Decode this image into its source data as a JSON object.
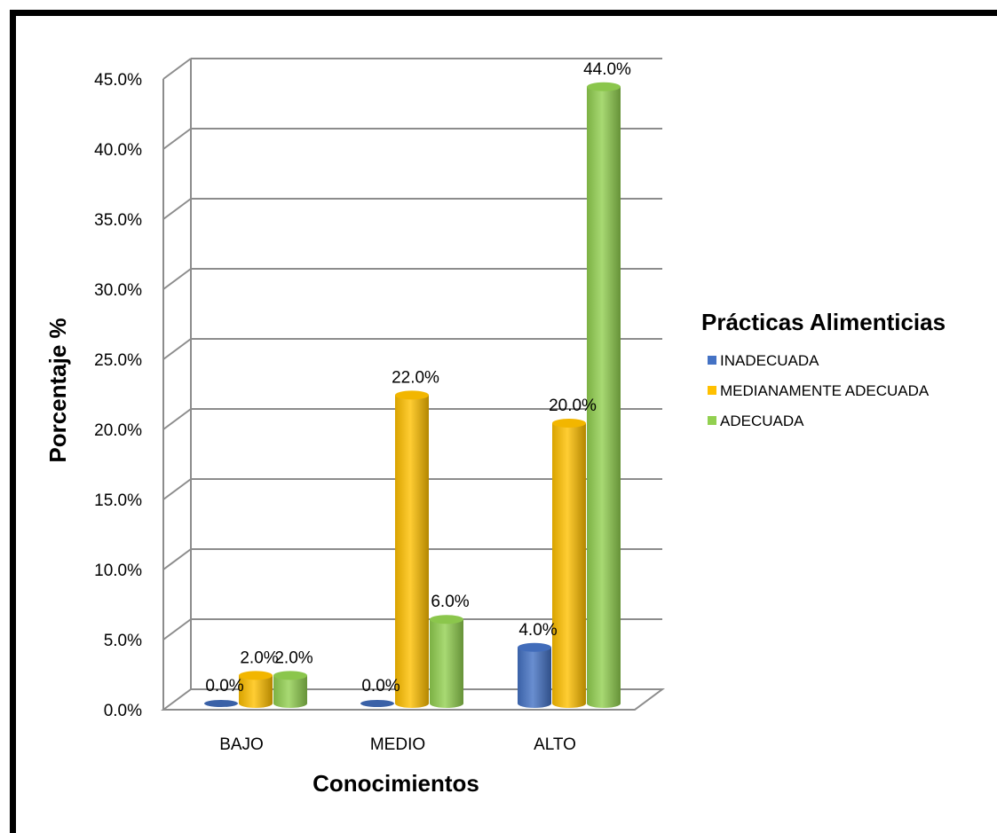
{
  "chart_data": {
    "type": "bar",
    "categories": [
      "BAJO",
      "MEDIO",
      "ALTO"
    ],
    "series": [
      {
        "name": "INADECUADA",
        "values": [
          0.0,
          0.0,
          4.0
        ],
        "color": "#4472C4"
      },
      {
        "name": "MEDIANAMENTE ADECUADA",
        "values": [
          2.0,
          22.0,
          20.0
        ],
        "color": "#FFC000"
      },
      {
        "name": "ADECUADA",
        "values": [
          2.0,
          6.0,
          44.0
        ],
        "color": "#92D050"
      }
    ],
    "data_labels": [
      [
        "0.0%",
        "0.0%",
        "4.0%"
      ],
      [
        "2.0%",
        "22.0%",
        "20.0%"
      ],
      [
        "2.0%",
        "6.0%",
        "44.0%"
      ]
    ],
    "y_ticks": [
      "0.0%",
      "5.0%",
      "10.0%",
      "15.0%",
      "20.0%",
      "25.0%",
      "30.0%",
      "35.0%",
      "40.0%",
      "45.0%"
    ],
    "ylim": [
      0,
      45
    ],
    "xlabel": "Conocimientos",
    "ylabel": "Porcentaje %",
    "legend_title": "Prácticas Alimenticias",
    "legend_position": "right",
    "grid": true,
    "style": "3d-cylinder"
  }
}
